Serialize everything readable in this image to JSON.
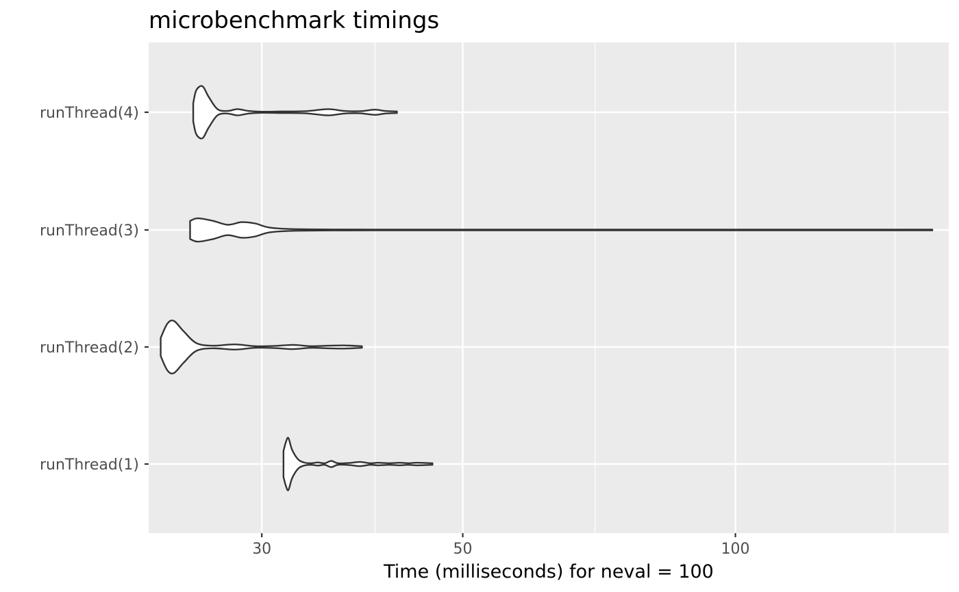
{
  "chart_data": {
    "type": "violin",
    "title": "microbenchmark timings",
    "xlabel": "Time (milliseconds) for neval = 100",
    "ylabel": "",
    "x_scale": "log",
    "xlim": [
      22.5,
      172
    ],
    "x_ticks": [
      30,
      50,
      100
    ],
    "x_tick_labels": [
      "30",
      "50",
      "100"
    ],
    "x_minor_ticks": [
      40,
      70,
      150
    ],
    "grid": true,
    "categories": [
      "runThread(4)",
      "runThread(3)",
      "runThread(2)",
      "runThread(1)"
    ],
    "series": [
      {
        "category": "runThread(4)",
        "min": 25.2,
        "max": 42.3,
        "density": [
          [
            25.2,
            0.35
          ],
          [
            25.4,
            0.85
          ],
          [
            25.8,
            1.0
          ],
          [
            26.2,
            0.6
          ],
          [
            26.8,
            0.12
          ],
          [
            27.5,
            0.05
          ],
          [
            28.2,
            0.12
          ],
          [
            29.0,
            0.05
          ],
          [
            30.0,
            0.02
          ],
          [
            31.5,
            0.03
          ],
          [
            33.5,
            0.04
          ],
          [
            35.5,
            0.12
          ],
          [
            37.0,
            0.05
          ],
          [
            38.5,
            0.04
          ],
          [
            40.0,
            0.1
          ],
          [
            41.0,
            0.05
          ],
          [
            42.3,
            0.03
          ]
        ]
      },
      {
        "category": "runThread(3)",
        "min": 25.0,
        "max": 165.0,
        "density": [
          [
            25.0,
            0.35
          ],
          [
            25.5,
            0.45
          ],
          [
            26.5,
            0.35
          ],
          [
            27.5,
            0.2
          ],
          [
            28.5,
            0.3
          ],
          [
            29.5,
            0.25
          ],
          [
            30.5,
            0.1
          ],
          [
            32.0,
            0.04
          ],
          [
            35.0,
            0.02
          ],
          [
            40.0,
            0.015
          ],
          [
            60.0,
            0.015
          ],
          [
            100.0,
            0.015
          ],
          [
            165.0,
            0.015
          ]
        ]
      },
      {
        "category": "runThread(2)",
        "min": 23.2,
        "max": 38.7,
        "density": [
          [
            23.2,
            0.35
          ],
          [
            23.6,
            0.9
          ],
          [
            24.0,
            1.0
          ],
          [
            24.6,
            0.6
          ],
          [
            25.4,
            0.15
          ],
          [
            26.5,
            0.05
          ],
          [
            28.0,
            0.1
          ],
          [
            29.5,
            0.03
          ],
          [
            31.0,
            0.04
          ],
          [
            32.5,
            0.08
          ],
          [
            34.0,
            0.03
          ],
          [
            35.5,
            0.05
          ],
          [
            37.0,
            0.06
          ],
          [
            38.7,
            0.03
          ]
        ]
      },
      {
        "category": "runThread(1)",
        "min": 31.7,
        "max": 46.3,
        "density": [
          [
            31.7,
            0.5
          ],
          [
            31.9,
            0.85
          ],
          [
            32.1,
            1.0
          ],
          [
            32.4,
            0.55
          ],
          [
            32.9,
            0.18
          ],
          [
            33.4,
            0.06
          ],
          [
            34.0,
            0.03
          ],
          [
            34.6,
            0.06
          ],
          [
            35.2,
            0.03
          ],
          [
            35.8,
            0.12
          ],
          [
            36.4,
            0.03
          ],
          [
            37.5,
            0.04
          ],
          [
            38.5,
            0.08
          ],
          [
            39.5,
            0.03
          ],
          [
            40.3,
            0.05
          ],
          [
            41.5,
            0.03
          ],
          [
            42.6,
            0.05
          ],
          [
            43.5,
            0.03
          ],
          [
            44.5,
            0.05
          ],
          [
            46.3,
            0.03
          ]
        ]
      }
    ]
  }
}
